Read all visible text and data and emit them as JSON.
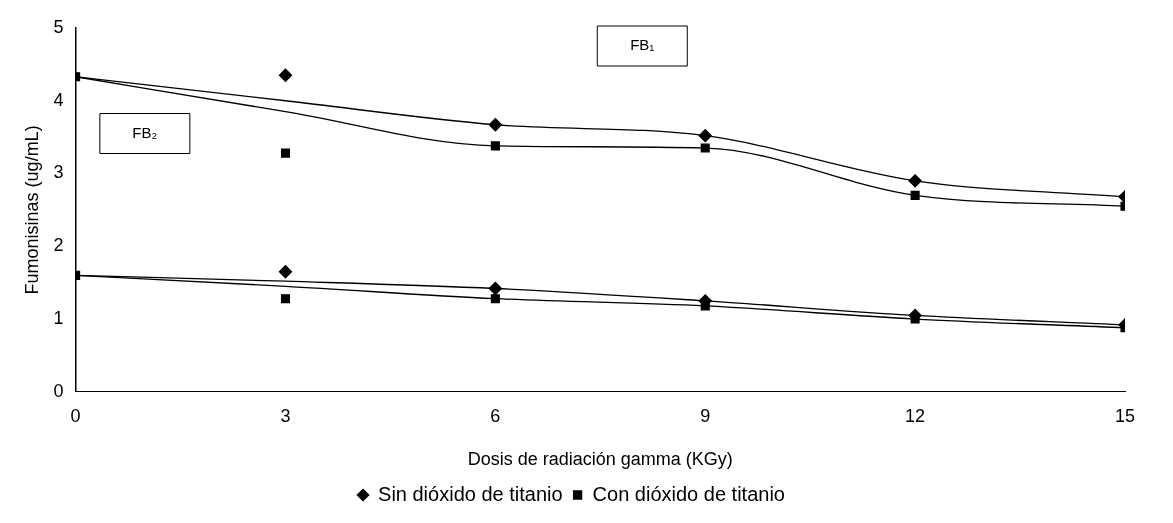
{
  "chart_data": {
    "type": "line",
    "xlabel": "Dosis de radiación gamma (KGy)",
    "ylabel": "Fumonisinas (ug/mL)",
    "x": [
      0,
      3,
      6,
      9,
      12,
      15
    ],
    "series": [
      {
        "color": "#000000",
        "marker": "none",
        "values": [
          4.33,
          4.0,
          3.67,
          3.52,
          2.9,
          2.68
        ]
      },
      {
        "color": "#000000",
        "marker": "none",
        "values": [
          4.33,
          3.85,
          3.38,
          3.35,
          2.7,
          2.55
        ]
      },
      {
        "color": "#000000",
        "marker": "none",
        "values": [
          1.6,
          1.52,
          1.42,
          1.25,
          1.05,
          0.92
        ]
      },
      {
        "color": "#000000",
        "marker": "none",
        "values": [
          1.6,
          1.45,
          1.28,
          1.18,
          1.0,
          0.88
        ]
      },
      {
        "type": "scatter",
        "name": "Sin dióxido de titanio",
        "color": "#000000",
        "marker": "diamond",
        "values": [
          null,
          4.35,
          3.67,
          3.52,
          2.9,
          2.68
        ]
      },
      {
        "type": "scatter",
        "name": "Con dióxido de titanio",
        "color": "#000000",
        "marker": "square",
        "values": [
          4.33,
          3.28,
          3.38,
          3.35,
          2.7,
          2.55
        ]
      },
      {
        "type": "scatter",
        "color": "#000000",
        "marker": "diamond",
        "values": [
          null,
          1.65,
          1.42,
          1.25,
          1.05,
          0.92
        ]
      },
      {
        "type": "scatter",
        "color": "#000000",
        "marker": "square",
        "values": [
          1.6,
          1.28,
          1.28,
          1.18,
          1.0,
          0.88
        ]
      }
    ],
    "annotations": [
      "FB₁",
      "FB₂"
    ],
    "xlim": [
      0,
      15
    ],
    "xticks": [
      0,
      3,
      6,
      9,
      12,
      15
    ],
    "ylim": [
      0,
      5
    ],
    "yticks": [
      0,
      1,
      2,
      3,
      4,
      5
    ],
    "grid": false,
    "legend": "bottom"
  }
}
